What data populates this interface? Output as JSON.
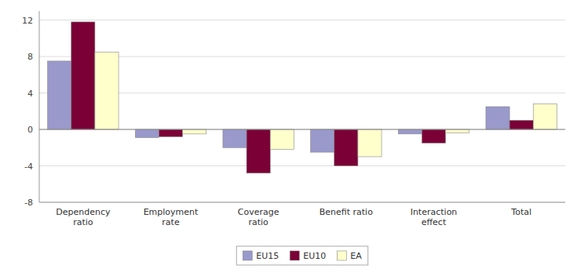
{
  "chart_data": {
    "type": "bar",
    "categories": [
      "Dependency\nratio",
      "Employment\nrate",
      "Coverage\nratio",
      "Benefit ratio",
      "Interaction\neffect",
      "Total"
    ],
    "series": [
      {
        "name": "EU15",
        "color": "#9999cc",
        "values": [
          7.5,
          -0.9,
          -2.0,
          -2.5,
          -0.5,
          2.5
        ]
      },
      {
        "name": "EU10",
        "color": "#7b0036",
        "values": [
          11.8,
          -0.8,
          -4.8,
          -4.0,
          -1.5,
          1.0
        ]
      },
      {
        "name": "EA",
        "color": "#ffffcc",
        "values": [
          8.5,
          -0.5,
          -2.2,
          -3.0,
          -0.4,
          2.8
        ]
      }
    ],
    "ylim": [
      -8,
      13
    ],
    "yticks": [
      -8,
      -4,
      0,
      4,
      8,
      12
    ],
    "grid": true,
    "legend": "bottom"
  }
}
